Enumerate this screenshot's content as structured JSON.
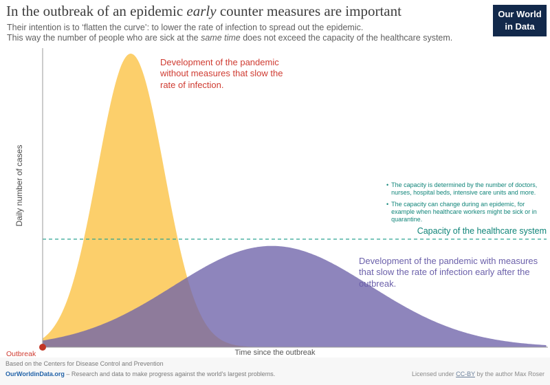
{
  "header": {
    "title": {
      "pre": "In the outbreak of an epidemic ",
      "em": "early",
      "post": " counter measures are important"
    },
    "subtitle_line1": "Their intention is to ‘flatten the curve’: to lower the rate of infection to spread out the epidemic.",
    "subtitle_line2": {
      "pre": "This way the number of people who are sick at the ",
      "em": "same time",
      "post": " does not exceed the capacity of the healthcare system."
    },
    "logo": {
      "line1": "Our World",
      "line2": "in Data",
      "bg_color": "#12294b"
    }
  },
  "chart_data": {
    "type": "area",
    "title": "In the outbreak of an epidemic early counter measures are important",
    "xlabel": "Time since the outbreak",
    "ylabel": "Daily number of cases",
    "x_range": [
      0,
      1
    ],
    "y_range": [
      0,
      1
    ],
    "grid": false,
    "axis_color": "#9a9a9a",
    "legend_position": "annotations-inline",
    "series": [
      {
        "name": "Pandemic without measures that slow the rate of infection",
        "shape": "gaussian",
        "peak_x": 0.175,
        "peak_y": 1.0,
        "sigma": 0.066,
        "fill": "#fccc63",
        "fill_opacity": 0.95
      },
      {
        "name": "Pandemic with measures that slow the rate of infection early after the outbreak",
        "shape": "gaussian",
        "peak_x": 0.455,
        "peak_y": 0.345,
        "sigma": 0.195,
        "fill": "#6e63a9",
        "fill_opacity": 0.78
      }
    ],
    "capacity_line": {
      "y": 0.368,
      "style": "dashed",
      "color": "#2aa491",
      "label": "Capacity of the healthcare system"
    },
    "outbreak_marker": {
      "x": 0,
      "y": 0,
      "color": "#c23625",
      "label": "Outbreak"
    }
  },
  "annotations": {
    "no_measures": {
      "text": "Development of the pandemic without measures that slow the rate of infection.",
      "color": "#cf3b31"
    },
    "with_measures": {
      "text": "Development of the pandemic with measures that slow the rate of infection early after the outbreak.",
      "color": "#6b60aa"
    },
    "capacity_notes": {
      "bullet": "•",
      "items": [
        "The capacity is determined by the number of doctors, nurses, hospital beds, intensive care units and more.",
        "The capacity can change during an epidemic, for example when healthcare workers might be sick or in quarantine."
      ]
    },
    "capacity_label": "Capacity of the healthcare system",
    "outbreak_label": "Outbreak"
  },
  "axes": {
    "y_label": "Daily number of cases",
    "x_label": "Time since the outbreak"
  },
  "footer": {
    "source": "Based on the Centers for Disease Control and Prevention",
    "site": "OurWorldinData.org",
    "tagline": " – Research and data to make progress against the world's largest problems.",
    "license": {
      "pre": "Licensed under ",
      "link": "CC-BY",
      "post": " by the author Max Roser"
    }
  }
}
